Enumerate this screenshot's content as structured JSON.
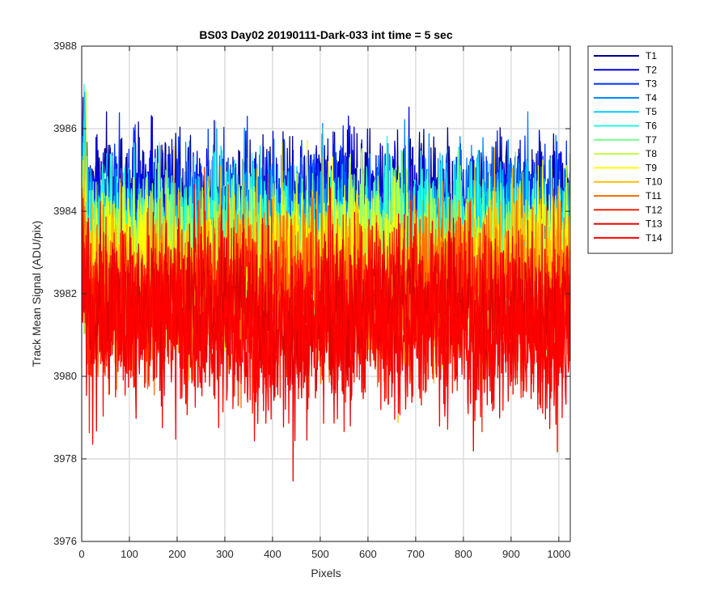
{
  "chart_data": {
    "type": "line",
    "title": "BS03 Day02 20190111-Dark-033 int time = 5 sec",
    "xlabel": "Pixels",
    "ylabel": "Track Mean Signal (ADU/pix)",
    "xlim": [
      0,
      1024
    ],
    "ylim": [
      3976,
      3988
    ],
    "xticks": [
      0,
      100,
      200,
      300,
      400,
      500,
      600,
      700,
      800,
      900,
      1000
    ],
    "yticks": [
      3976,
      3978,
      3980,
      3982,
      3984,
      3986,
      3988
    ],
    "grid": true,
    "legend_location": "outside-top-right",
    "n_points": 1024,
    "series": [
      {
        "name": "T1",
        "color": "#00008f",
        "mean": 3984.3,
        "spread": 0.75
      },
      {
        "name": "T2",
        "color": "#0000df",
        "mean": 3984.1,
        "spread": 0.75
      },
      {
        "name": "T3",
        "color": "#0030ff",
        "mean": 3983.9,
        "spread": 0.8
      },
      {
        "name": "T4",
        "color": "#0080ff",
        "mean": 3983.7,
        "spread": 0.8
      },
      {
        "name": "T5",
        "color": "#00cfff",
        "mean": 3983.5,
        "spread": 0.8
      },
      {
        "name": "T6",
        "color": "#20ffdf",
        "mean": 3983.3,
        "spread": 0.85
      },
      {
        "name": "T7",
        "color": "#70ff8f",
        "mean": 3983.1,
        "spread": 0.85
      },
      {
        "name": "T8",
        "color": "#bfff40",
        "mean": 3982.9,
        "spread": 0.85
      },
      {
        "name": "T9",
        "color": "#ffff00",
        "mean": 3982.6,
        "spread": 0.9
      },
      {
        "name": "T10",
        "color": "#ffbf00",
        "mean": 3982.4,
        "spread": 0.9
      },
      {
        "name": "T11",
        "color": "#ff7000",
        "mean": 3982.1,
        "spread": 0.95
      },
      {
        "name": "T12",
        "color": "#ff2000",
        "mean": 3981.8,
        "spread": 0.95
      },
      {
        "name": "T13",
        "color": "#df0000",
        "mean": 3981.5,
        "spread": 1.0
      },
      {
        "name": "T14",
        "color": "#ff0000",
        "mean": 3981.2,
        "spread": 1.0
      }
    ]
  }
}
